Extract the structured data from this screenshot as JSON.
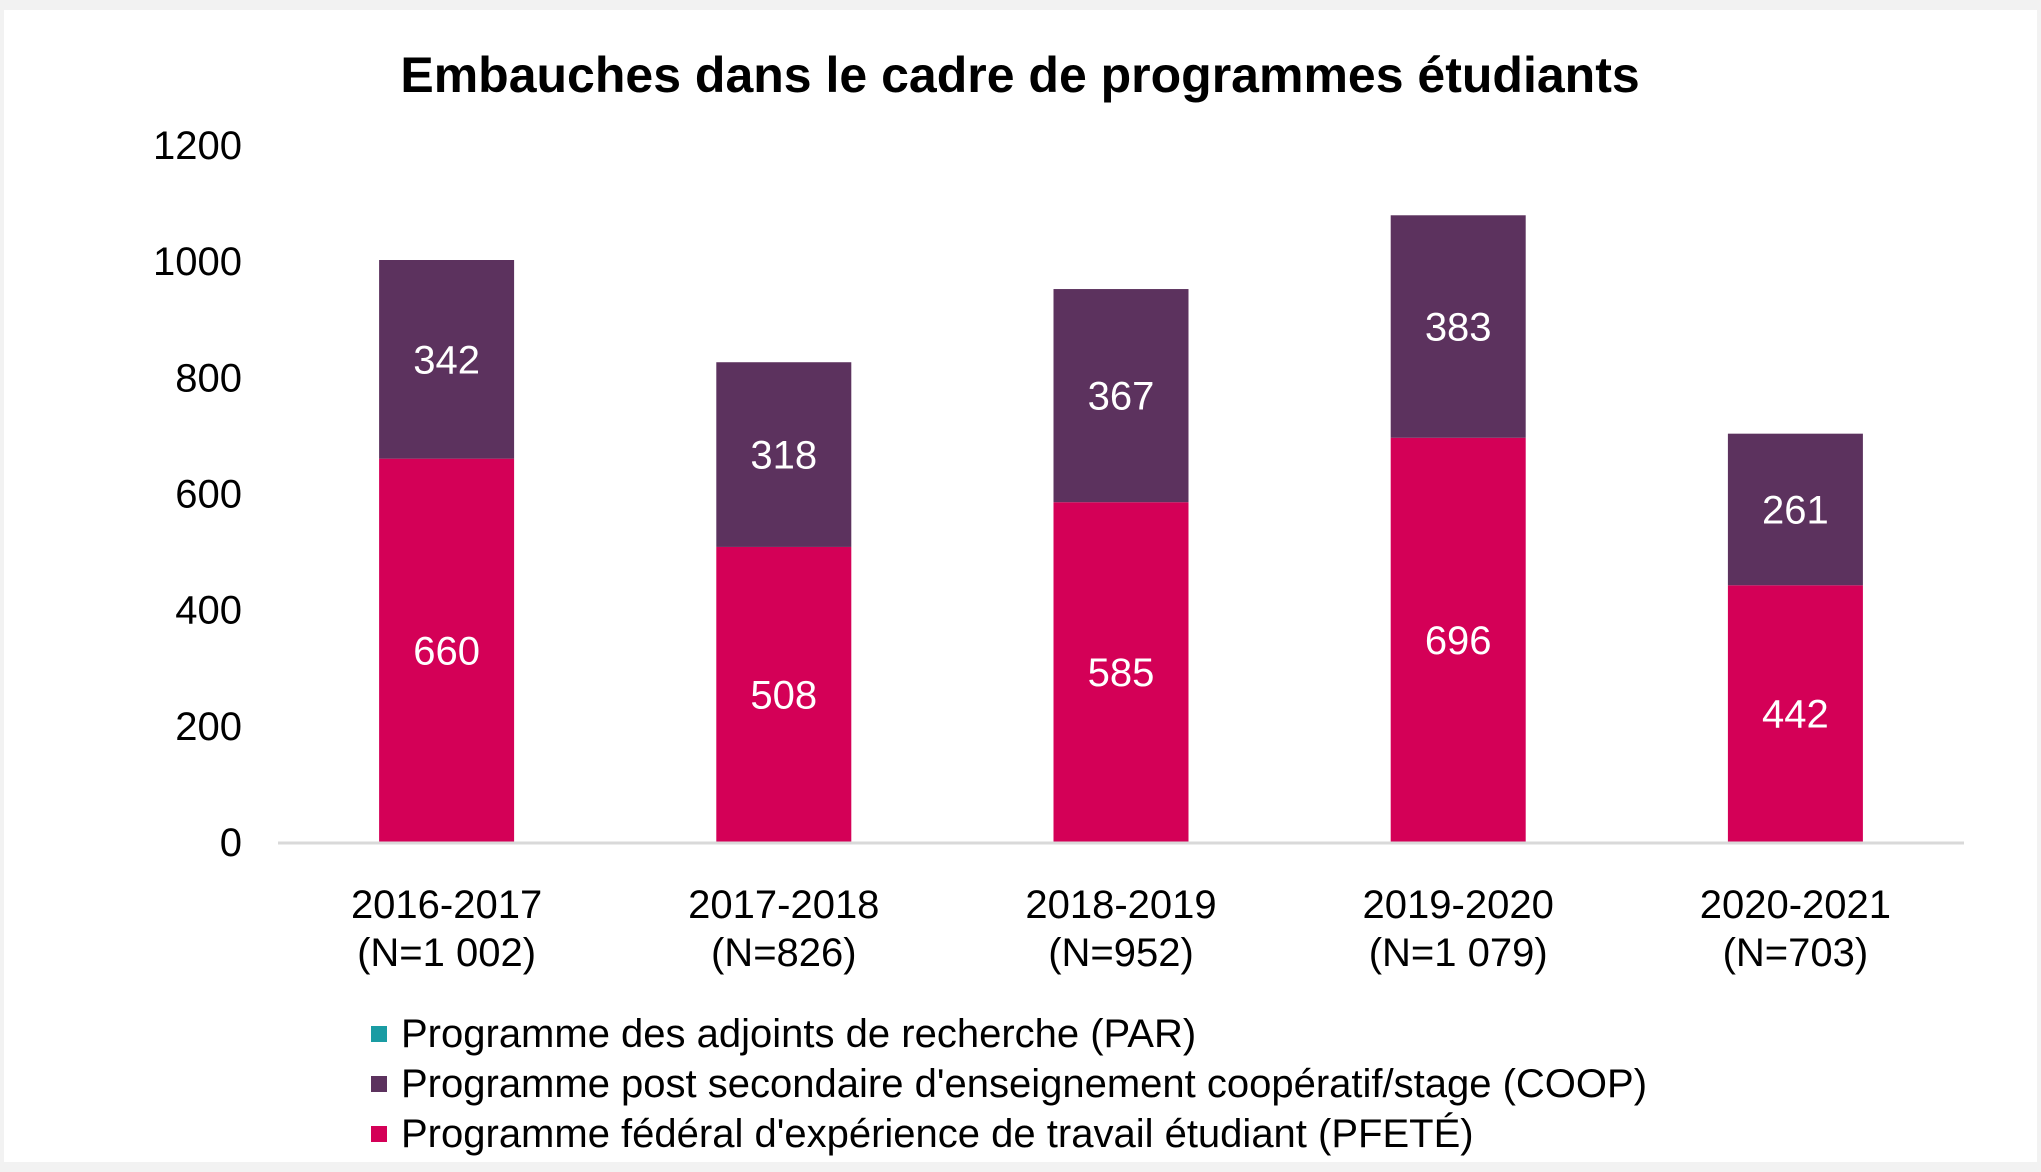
{
  "chart_data": {
    "type": "bar",
    "stacked": true,
    "title": "Embauches dans le cadre de programmes étudiants",
    "xlabel": "",
    "ylabel": "",
    "ylim": [
      0,
      1200
    ],
    "yticks": [
      0,
      200,
      400,
      600,
      800,
      1000,
      1200
    ],
    "grid": false,
    "legend_position": "bottom-left",
    "categories": [
      [
        "2016-2017",
        "(N=1 002)"
      ],
      [
        "2017-2018",
        "(N=826)"
      ],
      [
        "2018-2019",
        "(N=952)"
      ],
      [
        "2019-2020",
        "(N=1 079)"
      ],
      [
        "2020-2021",
        "(N=703)"
      ]
    ],
    "series": [
      {
        "name": "Programme fédéral d'expérience de travail étudiant (PFETÉ)",
        "color": "#d40057",
        "values": [
          660,
          508,
          585,
          696,
          442
        ]
      },
      {
        "name": "Programme post secondaire d'enseignement coopératif/stage (COOP)",
        "color": "#5c325e",
        "values": [
          342,
          318,
          367,
          383,
          261
        ]
      },
      {
        "name": "Programme des adjoints de recherche (PAR)",
        "color": "#1a9ca3",
        "values": [
          0,
          0,
          0,
          0,
          0
        ]
      }
    ],
    "legend": [
      {
        "name": "Programme des adjoints de recherche (PAR)",
        "color": "#1a9ca3"
      },
      {
        "name": "Programme post secondaire d'enseignement coopératif/stage (COOP)",
        "color": "#5c325e"
      },
      {
        "name": "Programme fédéral d'expérience de travail étudiant (PFETÉ)",
        "color": "#d40057"
      }
    ],
    "axis_color": "#d9d9d9"
  }
}
